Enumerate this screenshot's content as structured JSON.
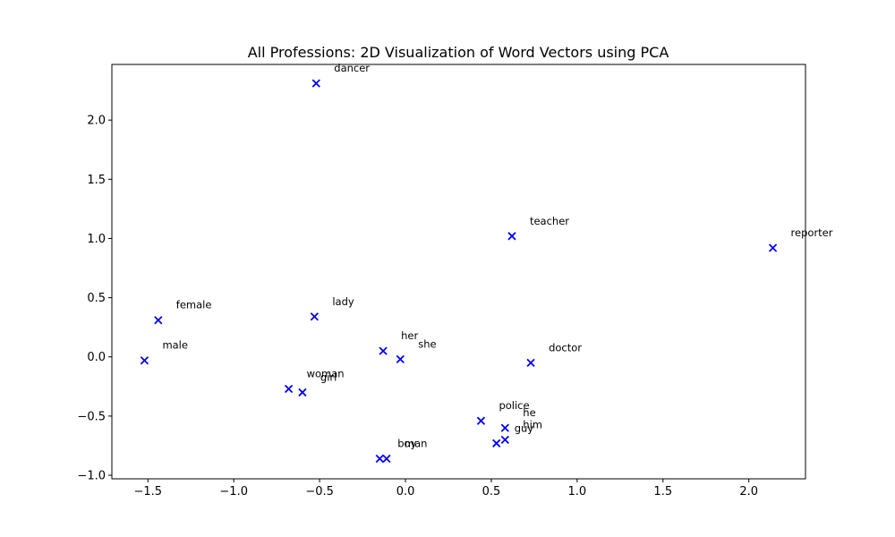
{
  "chart_data": {
    "type": "scatter",
    "title": "All Professions: 2D Visualization of Word Vectors using PCA",
    "xlabel": "",
    "ylabel": "",
    "xlim": [
      -1.71,
      2.33
    ],
    "ylim": [
      -1.03,
      2.47
    ],
    "xticks": [
      -1.5,
      -1.0,
      -0.5,
      0.0,
      0.5,
      1.0,
      1.5,
      2.0
    ],
    "xtick_labels": [
      "−1.5",
      "−1.0",
      "−0.5",
      "0.0",
      "0.5",
      "1.0",
      "1.5",
      "2.0"
    ],
    "yticks": [
      -1.0,
      -0.5,
      0.0,
      0.5,
      1.0,
      1.5,
      2.0
    ],
    "ytick_labels": [
      "−1.0",
      "−0.5",
      "0.0",
      "0.5",
      "1.0",
      "1.5",
      "2.0"
    ],
    "marker": "x",
    "marker_color": "#0000ff",
    "grid": false,
    "points": [
      {
        "label": "dancer",
        "x": -0.52,
        "y": 2.31
      },
      {
        "label": "teacher",
        "x": 0.62,
        "y": 1.02
      },
      {
        "label": "reporter",
        "x": 2.14,
        "y": 0.92
      },
      {
        "label": "female",
        "x": -1.44,
        "y": 0.31
      },
      {
        "label": "lady",
        "x": -0.53,
        "y": 0.34
      },
      {
        "label": "male",
        "x": -1.52,
        "y": -0.03
      },
      {
        "label": "her",
        "x": -0.13,
        "y": 0.05
      },
      {
        "label": "she",
        "x": -0.03,
        "y": -0.02
      },
      {
        "label": "doctor",
        "x": 0.73,
        "y": -0.05
      },
      {
        "label": "woman",
        "x": -0.68,
        "y": -0.27
      },
      {
        "label": "girl",
        "x": -0.6,
        "y": -0.3
      },
      {
        "label": "police",
        "x": 0.44,
        "y": -0.54
      },
      {
        "label": "he",
        "x": 0.58,
        "y": -0.6
      },
      {
        "label": "him",
        "x": 0.58,
        "y": -0.7
      },
      {
        "label": "guy",
        "x": 0.53,
        "y": -0.73
      },
      {
        "label": "boy",
        "x": -0.15,
        "y": -0.86
      },
      {
        "label": "man",
        "x": -0.11,
        "y": -0.86
      }
    ]
  }
}
